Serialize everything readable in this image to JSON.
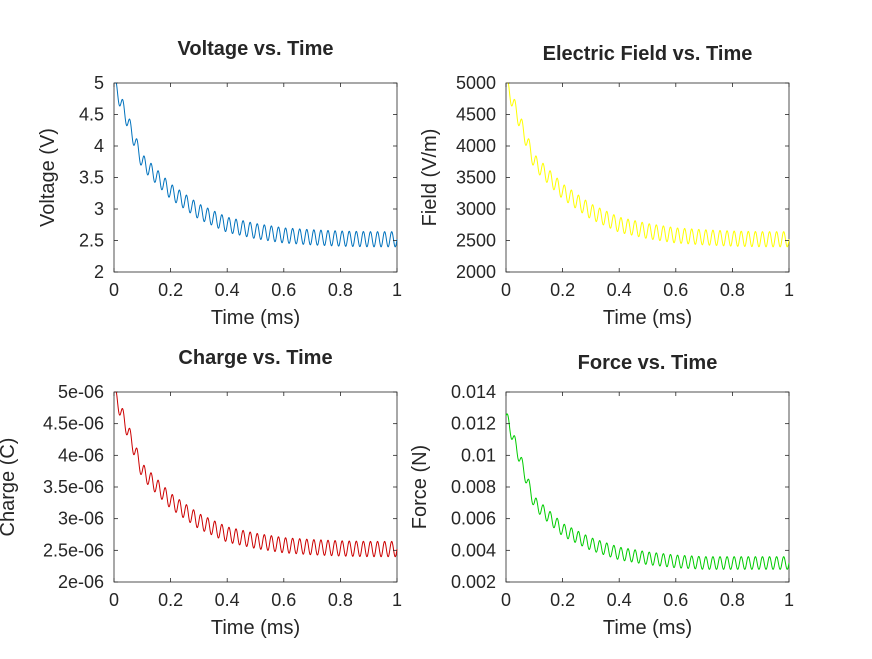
{
  "chart_data": [
    {
      "type": "line",
      "title": "Voltage vs. Time",
      "xlabel": "Time (ms)",
      "ylabel": "Voltage (V)",
      "xlim": [
        0,
        1
      ],
      "ylim": [
        2,
        5
      ],
      "xticks": [
        0,
        0.2,
        0.4,
        0.6,
        0.8,
        1
      ],
      "xtick_labels": [
        "0",
        "0.2",
        "0.4",
        "0.6",
        "0.8",
        "1"
      ],
      "yticks": [
        2,
        2.5,
        3,
        3.5,
        4,
        4.5,
        5
      ],
      "ytick_labels": [
        "2",
        "2.5",
        "3",
        "3.5",
        "4",
        "4.5",
        "5"
      ],
      "grid": false,
      "color": "#0072bd",
      "series": [
        {
          "x": [
            0,
            0.1,
            0.2,
            0.3,
            0.4,
            0.5,
            0.6,
            0.7,
            0.8,
            0.9,
            1.0
          ],
          "values": [
            5.0,
            3.75,
            3.28,
            2.96,
            2.75,
            2.65,
            2.58,
            2.55,
            2.53,
            2.52,
            2.52
          ],
          "ripple_amplitude": 0.12,
          "ripple_cycles": 40
        }
      ]
    },
    {
      "type": "line",
      "title": "Electric Field vs. Time",
      "xlabel": "Time (ms)",
      "ylabel": "Field (V/m)",
      "xlim": [
        0,
        1
      ],
      "ylim": [
        2000,
        5000
      ],
      "xticks": [
        0,
        0.2,
        0.4,
        0.6,
        0.8,
        1
      ],
      "xtick_labels": [
        "0",
        "0.2",
        "0.4",
        "0.6",
        "0.8",
        "1"
      ],
      "yticks": [
        2000,
        2500,
        3000,
        3500,
        4000,
        4500,
        5000
      ],
      "ytick_labels": [
        "2000",
        "2500",
        "3000",
        "3500",
        "4000",
        "4500",
        "5000"
      ],
      "grid": false,
      "color": "#ffff00",
      "series": [
        {
          "x": [
            0,
            0.1,
            0.2,
            0.3,
            0.4,
            0.5,
            0.6,
            0.7,
            0.8,
            0.9,
            1.0
          ],
          "values": [
            5000,
            3750,
            3280,
            2960,
            2750,
            2650,
            2580,
            2550,
            2530,
            2520,
            2520
          ],
          "ripple_amplitude": 120,
          "ripple_cycles": 40
        }
      ]
    },
    {
      "type": "line",
      "title": "Charge vs. Time",
      "xlabel": "Time (ms)",
      "ylabel": "Charge (C)",
      "xlim": [
        0,
        1
      ],
      "ylim": [
        2e-06,
        5e-06
      ],
      "xticks": [
        0,
        0.2,
        0.4,
        0.6,
        0.8,
        1
      ],
      "xtick_labels": [
        "0",
        "0.2",
        "0.4",
        "0.6",
        "0.8",
        "1"
      ],
      "yticks": [
        2e-06,
        2.5e-06,
        3e-06,
        3.5e-06,
        4e-06,
        4.5e-06,
        5e-06
      ],
      "ytick_labels": [
        "2e-06",
        "2.5e-06",
        "3e-06",
        "3.5e-06",
        "4e-06",
        "4.5e-06",
        "5e-06"
      ],
      "grid": false,
      "color": "#cc0000",
      "series": [
        {
          "x": [
            0,
            0.1,
            0.2,
            0.3,
            0.4,
            0.5,
            0.6,
            0.7,
            0.8,
            0.9,
            1.0
          ],
          "values": [
            5e-06,
            3.75e-06,
            3.28e-06,
            2.96e-06,
            2.75e-06,
            2.65e-06,
            2.58e-06,
            2.55e-06,
            2.53e-06,
            2.52e-06,
            2.52e-06
          ],
          "ripple_amplitude": 1.2e-07,
          "ripple_cycles": 40
        }
      ]
    },
    {
      "type": "line",
      "title": "Force vs. Time",
      "xlabel": "Time (ms)",
      "ylabel": "Force (N)",
      "xlim": [
        0,
        1
      ],
      "ylim": [
        0.002,
        0.014
      ],
      "xticks": [
        0,
        0.2,
        0.4,
        0.6,
        0.8,
        1
      ],
      "xtick_labels": [
        "0",
        "0.2",
        "0.4",
        "0.6",
        "0.8",
        "1"
      ],
      "yticks": [
        0.002,
        0.004,
        0.006,
        0.008,
        0.01,
        0.012,
        0.014
      ],
      "ytick_labels": [
        "0.002",
        "0.004",
        "0.006",
        "0.008",
        "0.01",
        "0.012",
        "0.014"
      ],
      "grid": false,
      "color": "#00cc00",
      "series": [
        {
          "x": [
            0,
            0.1,
            0.2,
            0.3,
            0.4,
            0.5,
            0.6,
            0.7,
            0.8,
            0.9,
            1.0
          ],
          "values": [
            0.0125,
            0.007,
            0.0053,
            0.0044,
            0.0038,
            0.0035,
            0.0033,
            0.0032,
            0.0032,
            0.0032,
            0.0032
          ],
          "ripple_amplitude": 0.0004,
          "ripple_cycles": 40
        }
      ]
    }
  ]
}
